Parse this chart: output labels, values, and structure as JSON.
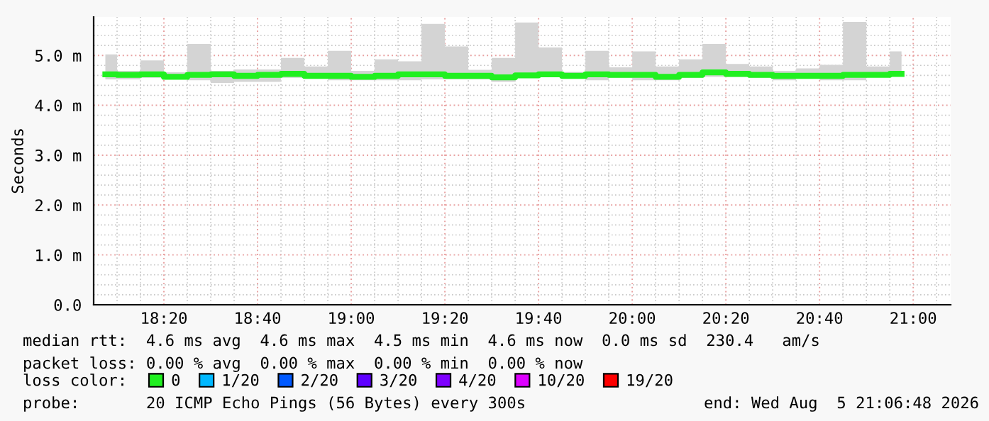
{
  "chart_data": {
    "type": "step",
    "ylabel": "Seconds",
    "legend_title": "loss color:",
    "legend": "bottom",
    "grid": true,
    "x": [
      "2026-08-05T18:07:30",
      "2026-08-05T18:12:30",
      "2026-08-05T18:17:30",
      "2026-08-05T18:22:30",
      "2026-08-05T18:27:30",
      "2026-08-05T18:32:30",
      "2026-08-05T18:37:30",
      "2026-08-05T18:42:30",
      "2026-08-05T18:47:30",
      "2026-08-05T18:52:30",
      "2026-08-05T18:57:30",
      "2026-08-05T19:02:30",
      "2026-08-05T19:07:30",
      "2026-08-05T19:12:30",
      "2026-08-05T19:17:30",
      "2026-08-05T19:22:30",
      "2026-08-05T19:27:30",
      "2026-08-05T19:32:30",
      "2026-08-05T19:37:30",
      "2026-08-05T19:42:30",
      "2026-08-05T19:47:30",
      "2026-08-05T19:52:30",
      "2026-08-05T19:57:30",
      "2026-08-05T20:02:30",
      "2026-08-05T20:07:30",
      "2026-08-05T20:12:30",
      "2026-08-05T20:17:30",
      "2026-08-05T20:22:30",
      "2026-08-05T20:27:30",
      "2026-08-05T20:32:30",
      "2026-08-05T20:37:30",
      "2026-08-05T20:42:30",
      "2026-08-05T20:47:30",
      "2026-08-05T20:52:30",
      "2026-08-05T20:57:30"
    ],
    "series": [
      {
        "name": "0",
        "color": "#20f020",
        "values": [
          4.62,
          4.61,
          4.62,
          4.57,
          4.61,
          4.62,
          4.59,
          4.61,
          4.63,
          4.59,
          4.59,
          4.57,
          4.59,
          4.62,
          4.62,
          4.59,
          4.59,
          4.56,
          4.6,
          4.62,
          4.59,
          4.62,
          4.61,
          4.61,
          4.57,
          4.61,
          4.66,
          4.63,
          4.61,
          4.59,
          4.59,
          4.59,
          4.61,
          4.61,
          4.63
        ],
        "lower": [
          4.52,
          4.52,
          4.55,
          4.55,
          4.5,
          4.45,
          4.47,
          4.47,
          4.55,
          4.55,
          4.5,
          4.5,
          4.5,
          4.5,
          4.52,
          4.52,
          4.52,
          4.47,
          4.55,
          4.57,
          4.57,
          4.5,
          4.55,
          4.5,
          4.5,
          4.55,
          4.57,
          4.57,
          4.55,
          4.5,
          4.55,
          4.5,
          4.5,
          4.6,
          4.6
        ],
        "upper": [
          5.02,
          4.69,
          4.9,
          4.66,
          5.23,
          4.69,
          4.72,
          4.72,
          4.95,
          4.78,
          5.09,
          4.69,
          4.92,
          4.88,
          5.63,
          5.18,
          4.71,
          4.95,
          5.66,
          5.16,
          4.67,
          5.09,
          4.76,
          5.08,
          4.78,
          4.92,
          5.23,
          4.83,
          4.78,
          4.69,
          4.74,
          4.81,
          5.67,
          4.78,
          5.08
        ]
      },
      {
        "name": "1/20",
        "color": "#00b8ff",
        "values": [
          null,
          null,
          null,
          null,
          null,
          null,
          null,
          null,
          null,
          null,
          null,
          null,
          null,
          null,
          null,
          null,
          null,
          null,
          null,
          null,
          null,
          null,
          null,
          null,
          null,
          null,
          null,
          null,
          null,
          null,
          null,
          null,
          null,
          null,
          null
        ]
      },
      {
        "name": "2/20",
        "color": "#0059ff",
        "values": [
          null,
          null,
          null,
          null,
          null,
          null,
          null,
          null,
          null,
          null,
          null,
          null,
          null,
          null,
          null,
          null,
          null,
          null,
          null,
          null,
          null,
          null,
          null,
          null,
          null,
          null,
          null,
          null,
          null,
          null,
          null,
          null,
          null,
          null,
          null
        ]
      },
      {
        "name": "3/20",
        "color": "#5e00ff",
        "values": [
          null,
          null,
          null,
          null,
          null,
          null,
          null,
          null,
          null,
          null,
          null,
          null,
          null,
          null,
          null,
          null,
          null,
          null,
          null,
          null,
          null,
          null,
          null,
          null,
          null,
          null,
          null,
          null,
          null,
          null,
          null,
          null,
          null,
          null,
          null
        ]
      },
      {
        "name": "4/20",
        "color": "#7e00ff",
        "values": [
          null,
          null,
          null,
          null,
          null,
          null,
          null,
          null,
          null,
          null,
          null,
          null,
          null,
          null,
          null,
          null,
          null,
          null,
          null,
          null,
          null,
          null,
          null,
          null,
          null,
          null,
          null,
          null,
          null,
          null,
          null,
          null,
          null,
          null,
          null
        ]
      },
      {
        "name": "10/20",
        "color": "#dd00ff",
        "values": [
          null,
          null,
          null,
          null,
          null,
          null,
          null,
          null,
          null,
          null,
          null,
          null,
          null,
          null,
          null,
          null,
          null,
          null,
          null,
          null,
          null,
          null,
          null,
          null,
          null,
          null,
          null,
          null,
          null,
          null,
          null,
          null,
          null,
          null,
          null
        ]
      },
      {
        "name": "19/20",
        "color": "#ff0000",
        "values": [
          null,
          null,
          null,
          null,
          null,
          null,
          null,
          null,
          null,
          null,
          null,
          null,
          null,
          null,
          null,
          null,
          null,
          null,
          null,
          null,
          null,
          null,
          null,
          null,
          null,
          null,
          null,
          null,
          null,
          null,
          null,
          null,
          null,
          null,
          null
        ]
      }
    ],
    "xlim": [
      "2026-08-05T18:05",
      "2026-08-05T21:08"
    ],
    "xticks": [
      {
        "value": "2026-08-05T18:20",
        "label": "18:20"
      },
      {
        "value": "2026-08-05T18:40",
        "label": "18:40"
      },
      {
        "value": "2026-08-05T19:00",
        "label": "19:00"
      },
      {
        "value": "2026-08-05T19:20",
        "label": "19:20"
      },
      {
        "value": "2026-08-05T19:40",
        "label": "19:40"
      },
      {
        "value": "2026-08-05T20:00",
        "label": "20:00"
      },
      {
        "value": "2026-08-05T20:20",
        "label": "20:20"
      },
      {
        "value": "2026-08-05T20:40",
        "label": "20:40"
      },
      {
        "value": "2026-08-05T21:00",
        "label": "21:00"
      }
    ],
    "ylim": [
      0,
      5.77
    ],
    "yticks": [
      {
        "value": 0,
        "label": "0.0"
      },
      {
        "value": 1,
        "label": "1.0 m"
      },
      {
        "value": 2,
        "label": "2.0 m"
      },
      {
        "value": 3,
        "label": "3.0 m"
      },
      {
        "value": 4,
        "label": "4.0 m"
      },
      {
        "value": 5,
        "label": "5.0 m"
      }
    ],
    "annotations": [
      "median rtt:  4.6 ms avg  4.6 ms max  4.5 ms min  4.6 ms now  0.0 ms sd  230.4   am/s",
      "packet loss: 0.00 % avg  0.00 % max  0.00 % min  0.00 % now",
      "probe:       20 ICMP Echo Pings (56 Bytes) every 300s",
      "end: Wed Aug  5 21:06:48 2026"
    ]
  }
}
